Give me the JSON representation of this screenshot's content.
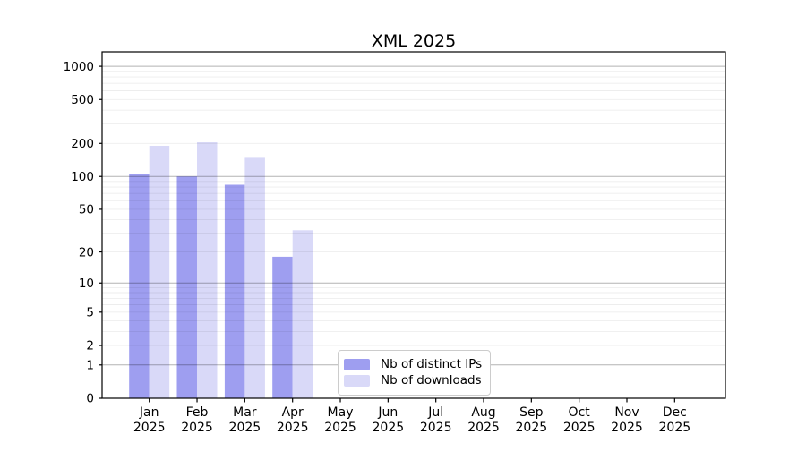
{
  "title": "XML 2025",
  "chart_data": {
    "type": "bar",
    "title": "XML 2025",
    "categories": [
      "Jan",
      "Feb",
      "Mar",
      "Apr",
      "May",
      "Jun",
      "Jul",
      "Aug",
      "Sep",
      "Oct",
      "Nov",
      "Dec"
    ],
    "x_tick_second_line": "2025",
    "series": [
      {
        "name": "Nb of distinct IPs",
        "color": "#9e9ef0",
        "values": [
          105,
          100,
          84,
          18,
          0,
          0,
          0,
          0,
          0,
          0,
          0,
          0
        ]
      },
      {
        "name": "Nb of downloads",
        "color": "#d9d9f8",
        "values": [
          190,
          205,
          148,
          32,
          0,
          0,
          0,
          0,
          0,
          0,
          0,
          0
        ]
      }
    ],
    "y_ticks": [
      0,
      1,
      2,
      5,
      10,
      20,
      50,
      100,
      200,
      500,
      1000
    ],
    "scale": "log1p",
    "ylim": [
      0,
      1350
    ],
    "grid": true,
    "legend_position": "lower center",
    "colors": {
      "axis": "#000000",
      "major_grid": "rgba(0,0,0,0.30)",
      "minor_grid": "rgba(0,0,0,0.07)",
      "background": "#ffffff"
    }
  }
}
